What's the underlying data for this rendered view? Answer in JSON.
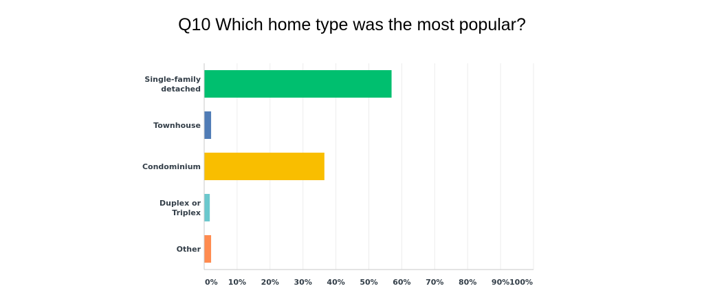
{
  "chart_data": {
    "type": "bar",
    "orientation": "horizontal",
    "title": "Q10 Which home type was the most popular?",
    "xlabel": "",
    "ylabel": "",
    "categories": [
      "Single-family detached",
      "Townhouse",
      "Condominium",
      "Duplex or Triplex",
      "Other"
    ],
    "category_lines": [
      [
        "Single-family",
        "detached"
      ],
      [
        "Townhouse"
      ],
      [
        "Condominium"
      ],
      [
        "Duplex or",
        "Triplex"
      ],
      [
        "Other"
      ]
    ],
    "values": [
      56.9,
      2.1,
      36.5,
      1.7,
      2.1
    ],
    "colors": [
      "#00bf6f",
      "#507cb6",
      "#f9be00",
      "#6bc8cd",
      "#ff8b4f"
    ],
    "xlim": [
      0,
      100
    ],
    "x_ticks": [
      0,
      10,
      20,
      30,
      40,
      50,
      60,
      70,
      80,
      90,
      100
    ],
    "x_tick_labels": [
      "0%",
      "10%",
      "20%",
      "30%",
      "40%",
      "50%",
      "60%",
      "70%",
      "80%",
      "90%",
      "100%"
    ],
    "grid": true,
    "legend": "none"
  }
}
